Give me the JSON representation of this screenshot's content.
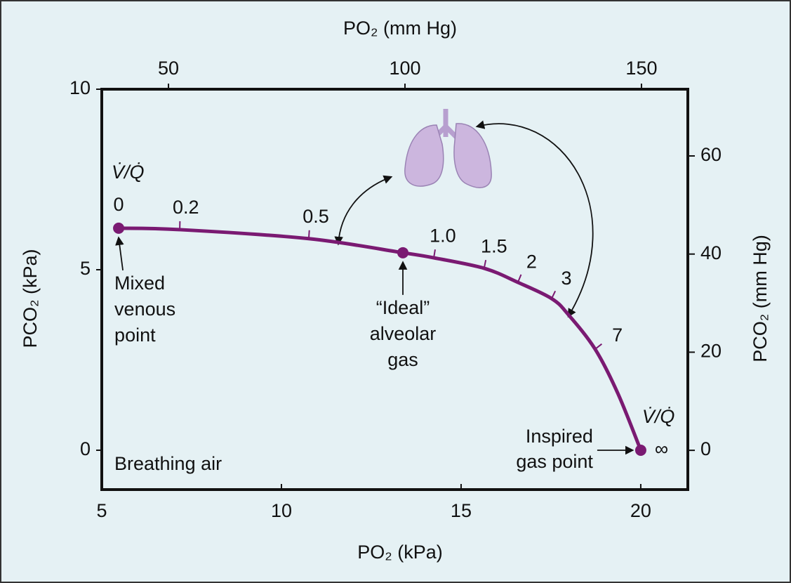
{
  "chart_data": {
    "type": "line",
    "x_label": "PO₂ (kPa)",
    "y_label": "PCO₂ (kPa)",
    "x2_label": "PO₂ (mm Hg)",
    "y2_label": "PCO₂ (mm Hg)",
    "xlim": [
      5,
      21.31
    ],
    "xticks": [
      5,
      10,
      15,
      20
    ],
    "ylim": [
      -1.09,
      10
    ],
    "yticks": [
      0,
      5,
      10
    ],
    "x2lim": [
      35.9,
      159.8
    ],
    "x2ticks": [
      50,
      100,
      150
    ],
    "y2lim": [
      -8,
      73.6
    ],
    "y2ticks": [
      0,
      20,
      40,
      60
    ],
    "series": [
      {
        "color": "#7a1a72",
        "x": [
          5.47,
          7.17,
          10.76,
          13.38,
          14.24,
          15.64,
          16.58,
          17.52,
          17.99,
          18.73,
          19.36,
          20
        ],
        "values": [
          6.15,
          6.11,
          5.86,
          5.47,
          5.33,
          5.04,
          4.65,
          4.2,
          3.75,
          2.8,
          1.58,
          0
        ]
      }
    ],
    "vq_ticks": {
      "labels": [
        0.2,
        0.5,
        {
          "value": 1,
          "label": "1.0"
        },
        1.5,
        2,
        3,
        7
      ],
      "x": [
        7.17,
        10.76,
        14.24,
        15.64,
        16.58,
        17.52,
        18.73
      ],
      "y": [
        6.11,
        5.86,
        5.33,
        5.04,
        4.65,
        4.2,
        2.8
      ]
    },
    "vq_symbol": "V̇/Q̇",
    "vq_start": 0,
    "vq_end": "∞",
    "points": [
      {
        "x": 5.47,
        "y": 6.15,
        "lines": [
          "Mixed",
          "venous",
          "point"
        ]
      },
      {
        "x": 13.38,
        "y": 5.47,
        "lines": [
          "“Ideal”",
          "alveolar",
          "gas"
        ]
      },
      {
        "x": 20,
        "y": 0,
        "lines": [
          "Inspired",
          "gas point"
        ]
      }
    ],
    "annotation": "Breathing air"
  }
}
